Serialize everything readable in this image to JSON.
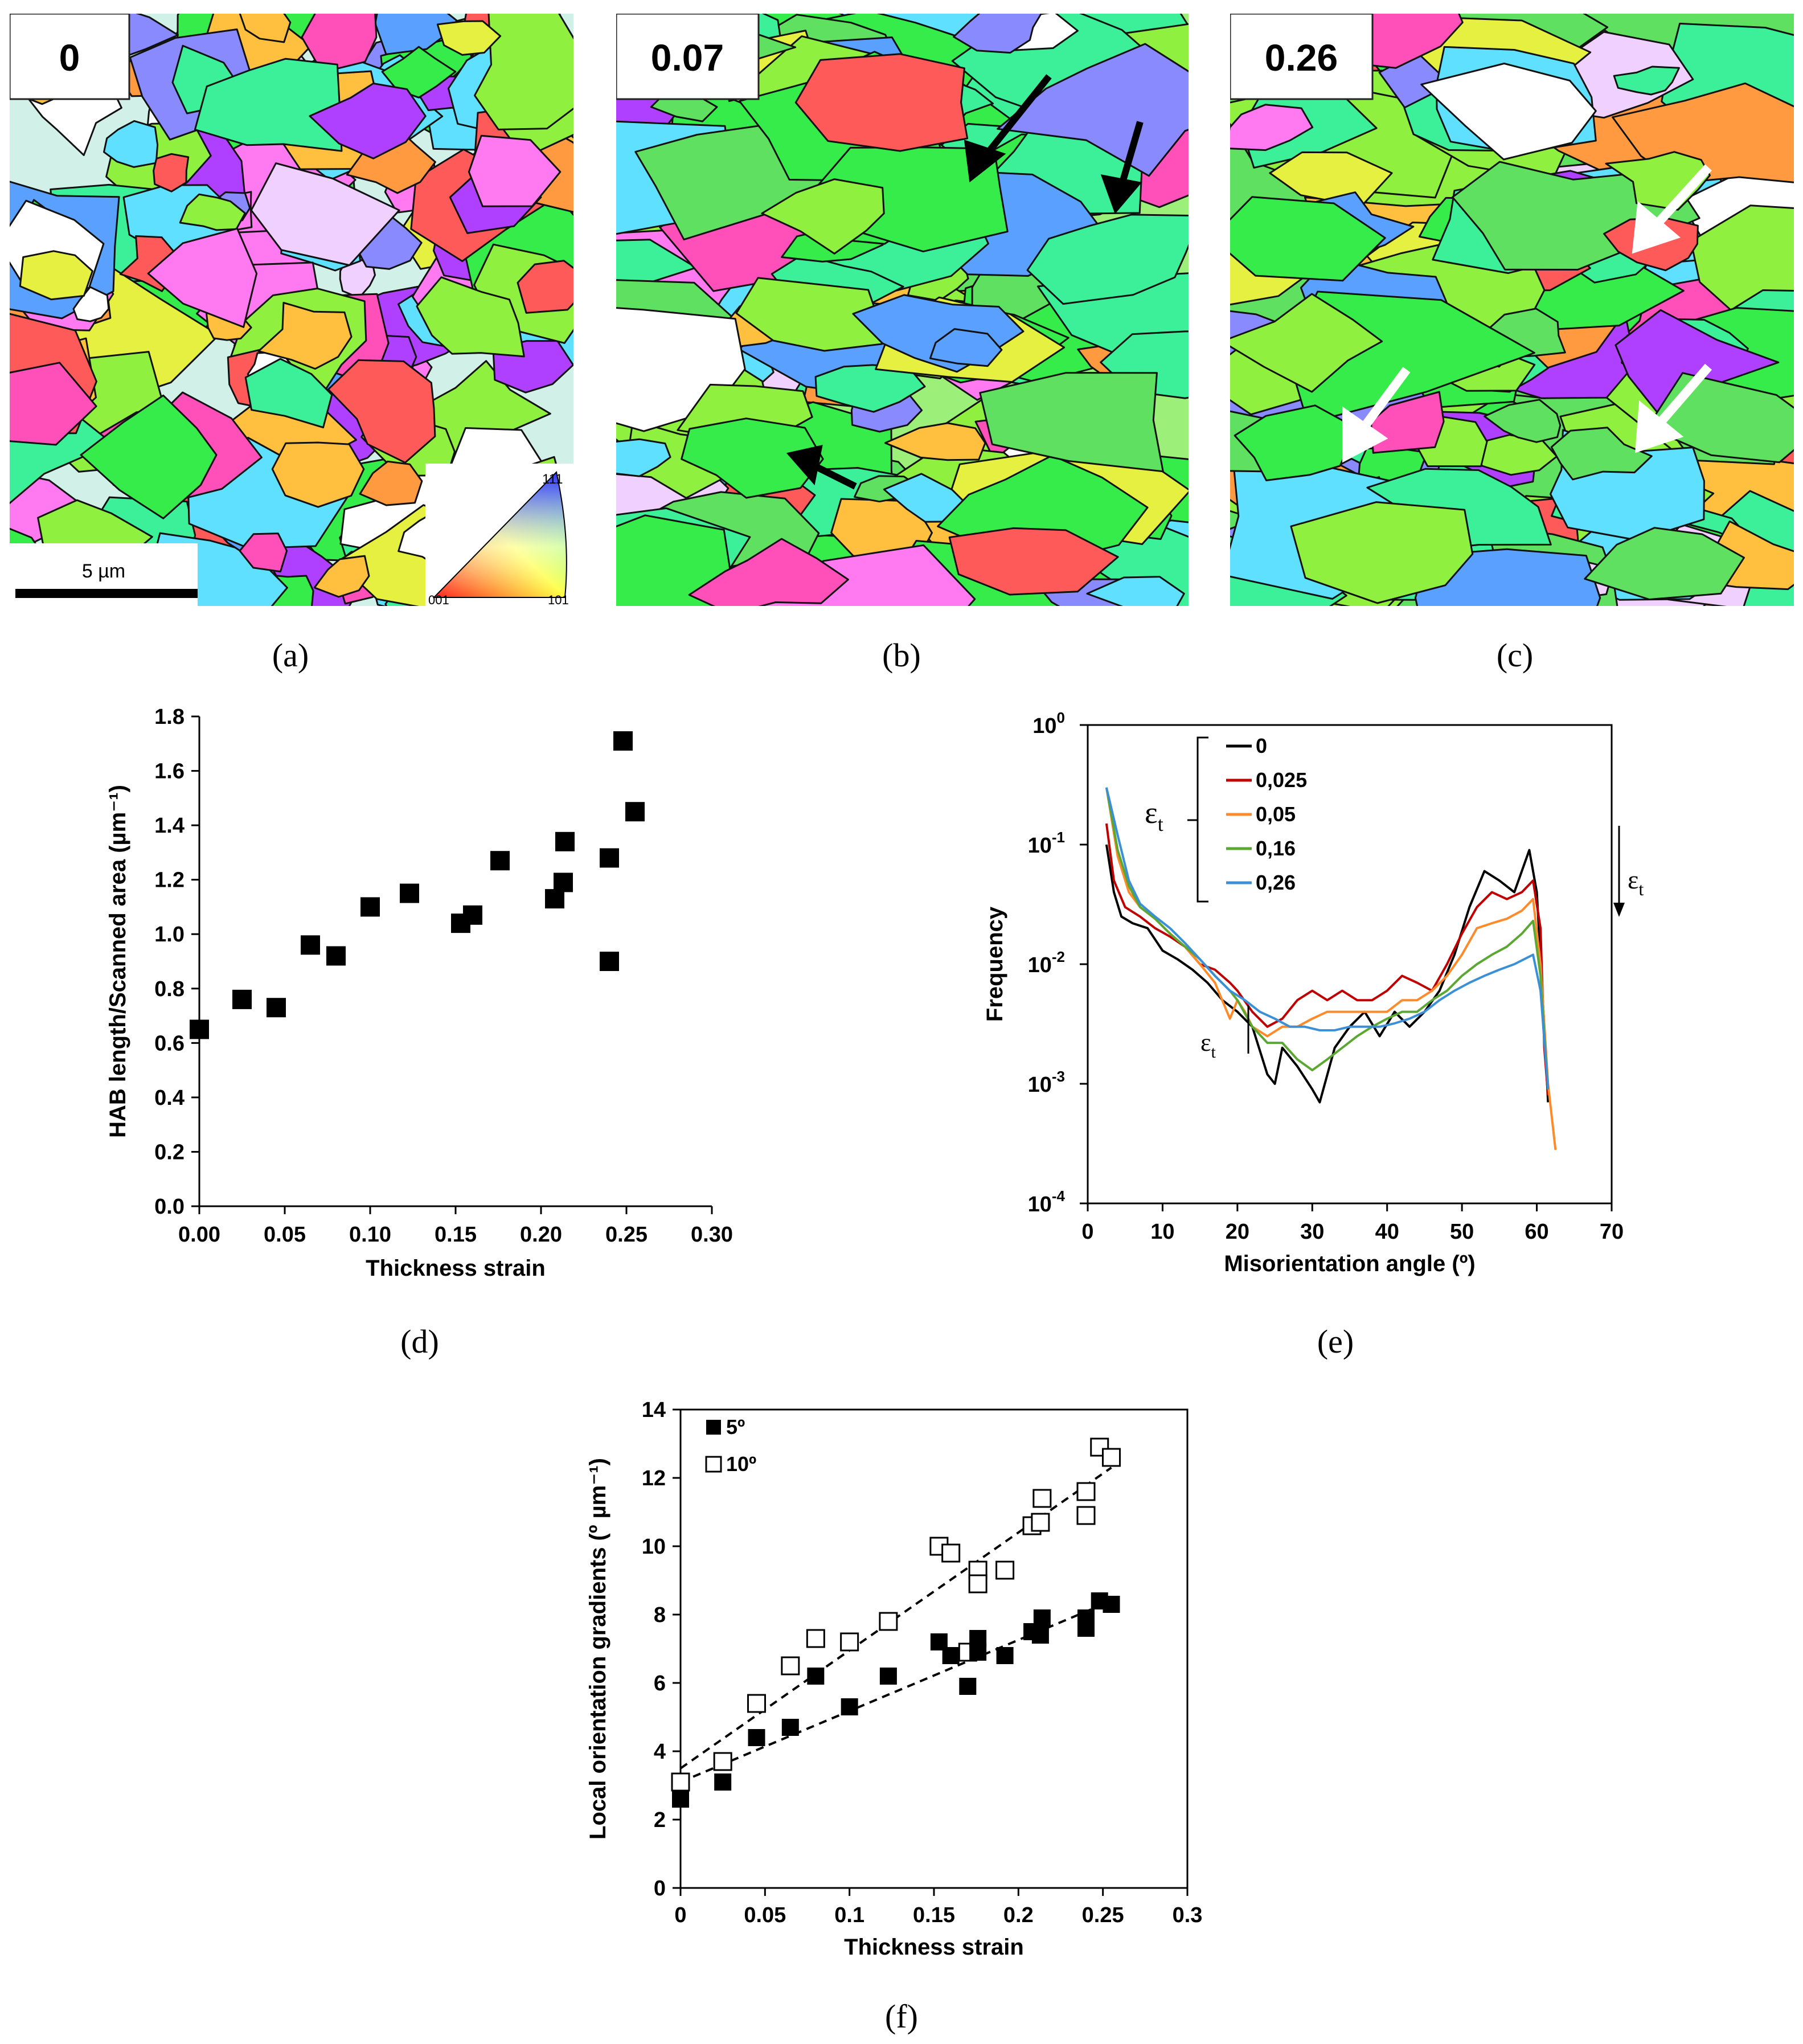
{
  "panels": {
    "a": {
      "caption": "(a)",
      "strain_label": "0",
      "scale_bar": "5 µm",
      "legend": {
        "v111": "111",
        "v001": "001",
        "v101": "101"
      }
    },
    "b": {
      "caption": "(b)",
      "strain_label": "0.07"
    },
    "c": {
      "caption": "(c)",
      "strain_label": "0.26"
    },
    "d": {
      "caption": "(d)"
    },
    "e": {
      "caption": "(e)"
    },
    "f": {
      "caption": "(f)"
    }
  },
  "colors": {
    "ebsd_palette": [
      "#ff5a5a",
      "#ff4fb8",
      "#ff7af0",
      "#b040ff",
      "#8a8aff",
      "#5aa0ff",
      "#60e0ff",
      "#3cf09a",
      "#35ec4a",
      "#90f040",
      "#e6f040",
      "#ffc040",
      "#ff9a40",
      "#f0d0ff",
      "#ffffff"
    ],
    "e_series": [
      "#000000",
      "#c00000",
      "#ff8a2a",
      "#5aa832",
      "#3a8fd6"
    ]
  },
  "chart_data": [
    {
      "id": "d",
      "type": "scatter",
      "marker": "filled-square",
      "xlabel": "Thickness strain",
      "ylabel": "HAB length/Scanned area (µm⁻¹)",
      "xlim": [
        0,
        0.3
      ],
      "ylim": [
        0,
        1.8
      ],
      "xticks": [
        "0.00",
        "0.05",
        "0.10",
        "0.15",
        "0.20",
        "0.25",
        "0.30"
      ],
      "yticks": [
        "0.0",
        "0.2",
        "0.4",
        "0.6",
        "0.8",
        "1.0",
        "1.2",
        "1.4",
        "1.6",
        "1.8"
      ],
      "points": [
        [
          0.0,
          0.65
        ],
        [
          0.025,
          0.76
        ],
        [
          0.045,
          0.73
        ],
        [
          0.065,
          0.96
        ],
        [
          0.08,
          0.92
        ],
        [
          0.1,
          1.1
        ],
        [
          0.123,
          1.15
        ],
        [
          0.153,
          1.04
        ],
        [
          0.16,
          1.07
        ],
        [
          0.176,
          1.27
        ],
        [
          0.208,
          1.13
        ],
        [
          0.213,
          1.19
        ],
        [
          0.214,
          1.34
        ],
        [
          0.24,
          1.28
        ],
        [
          0.24,
          0.9
        ],
        [
          0.248,
          1.71
        ],
        [
          0.255,
          1.45
        ]
      ]
    },
    {
      "id": "e",
      "type": "line",
      "xlabel": "Misorientation angle (º)",
      "ylabel": "Frequency",
      "xlim": [
        0,
        70
      ],
      "ylim_log10": [
        -4,
        0
      ],
      "xticks": [
        "0",
        "10",
        "20",
        "30",
        "40",
        "50",
        "60",
        "70"
      ],
      "yticks": [
        {
          "base": "10",
          "exp": "0"
        },
        {
          "base": "10",
          "exp": "-1"
        },
        {
          "base": "10",
          "exp": "-2"
        },
        {
          "base": "10",
          "exp": "-3"
        },
        {
          "base": "10",
          "exp": "-4"
        }
      ],
      "legend_title": "ε",
      "legend_title_sub": "t",
      "annotation_right": "ε",
      "annotation_right_sub": "t",
      "annotation_low": "ε",
      "annotation_low_sub": "t",
      "series": [
        {
          "name": "0",
          "points": [
            [
              2.5,
              0.1
            ],
            [
              3.5,
              0.04
            ],
            [
              4.5,
              0.025
            ],
            [
              6,
              0.022
            ],
            [
              8,
              0.02
            ],
            [
              10,
              0.013
            ],
            [
              12,
              0.011
            ],
            [
              14,
              0.009
            ],
            [
              16,
              0.007
            ],
            [
              18,
              0.005
            ],
            [
              20,
              0.004
            ],
            [
              22,
              0.003
            ],
            [
              24,
              0.0012
            ],
            [
              25,
              0.001
            ],
            [
              26,
              0.002
            ],
            [
              28,
              0.0014
            ],
            [
              30,
              0.0009
            ],
            [
              31,
              0.0007
            ],
            [
              33,
              0.002
            ],
            [
              35,
              0.003
            ],
            [
              37,
              0.004
            ],
            [
              39,
              0.0025
            ],
            [
              41,
              0.004
            ],
            [
              43,
              0.003
            ],
            [
              45,
              0.004
            ],
            [
              47,
              0.006
            ],
            [
              49,
              0.012
            ],
            [
              51,
              0.03
            ],
            [
              53,
              0.06
            ],
            [
              55,
              0.05
            ],
            [
              57,
              0.04
            ],
            [
              59,
              0.09
            ],
            [
              60,
              0.04
            ],
            [
              61,
              0.003
            ],
            [
              61.5,
              0.0007
            ]
          ]
        },
        {
          "name": "0,025",
          "points": [
            [
              2.5,
              0.15
            ],
            [
              3.5,
              0.05
            ],
            [
              5,
              0.03
            ],
            [
              7,
              0.025
            ],
            [
              9,
              0.02
            ],
            [
              11,
              0.017
            ],
            [
              13,
              0.014
            ],
            [
              15,
              0.01
            ],
            [
              17,
              0.009
            ],
            [
              19,
              0.007
            ],
            [
              20,
              0.006
            ],
            [
              22,
              0.004
            ],
            [
              24,
              0.003
            ],
            [
              26,
              0.0035
            ],
            [
              28,
              0.005
            ],
            [
              30,
              0.006
            ],
            [
              32,
              0.005
            ],
            [
              34,
              0.006
            ],
            [
              36,
              0.005
            ],
            [
              38,
              0.005
            ],
            [
              40,
              0.006
            ],
            [
              42,
              0.008
            ],
            [
              44,
              0.007
            ],
            [
              46,
              0.006
            ],
            [
              48,
              0.01
            ],
            [
              50,
              0.018
            ],
            [
              52,
              0.03
            ],
            [
              54,
              0.04
            ],
            [
              56,
              0.035
            ],
            [
              58,
              0.04
            ],
            [
              59.5,
              0.05
            ],
            [
              60.5,
              0.02
            ],
            [
              61,
              0.002
            ],
            [
              61.5,
              0.0008
            ]
          ]
        },
        {
          "name": "0,05",
          "points": [
            [
              2.5,
              0.3
            ],
            [
              4,
              0.08
            ],
            [
              5.5,
              0.04
            ],
            [
              7,
              0.03
            ],
            [
              9,
              0.024
            ],
            [
              11,
              0.018
            ],
            [
              13,
              0.014
            ],
            [
              15,
              0.01
            ],
            [
              17,
              0.007
            ],
            [
              19,
              0.0035
            ],
            [
              20,
              0.005
            ],
            [
              21,
              0.004
            ],
            [
              22,
              0.003
            ],
            [
              24,
              0.0025
            ],
            [
              26,
              0.003
            ],
            [
              28,
              0.003
            ],
            [
              30,
              0.0035
            ],
            [
              32,
              0.004
            ],
            [
              34,
              0.004
            ],
            [
              36,
              0.004
            ],
            [
              38,
              0.004
            ],
            [
              40,
              0.004
            ],
            [
              42,
              0.005
            ],
            [
              44,
              0.005
            ],
            [
              46,
              0.006
            ],
            [
              48,
              0.008
            ],
            [
              50,
              0.012
            ],
            [
              52,
              0.02
            ],
            [
              54,
              0.022
            ],
            [
              56,
              0.024
            ],
            [
              58,
              0.028
            ],
            [
              59.5,
              0.035
            ],
            [
              60.5,
              0.01
            ],
            [
              61.5,
              0.001
            ],
            [
              62.5,
              0.00028
            ]
          ]
        },
        {
          "name": "0,16",
          "points": [
            [
              2.5,
              0.3
            ],
            [
              4,
              0.09
            ],
            [
              5.5,
              0.045
            ],
            [
              7,
              0.03
            ],
            [
              9,
              0.024
            ],
            [
              11,
              0.018
            ],
            [
              13,
              0.014
            ],
            [
              15,
              0.011
            ],
            [
              17,
              0.008
            ],
            [
              19,
              0.006
            ],
            [
              20,
              0.005
            ],
            [
              22,
              0.003
            ],
            [
              24,
              0.0022
            ],
            [
              26,
              0.0022
            ],
            [
              28,
              0.0016
            ],
            [
              30,
              0.0013
            ],
            [
              32,
              0.0016
            ],
            [
              34,
              0.002
            ],
            [
              36,
              0.0025
            ],
            [
              38,
              0.003
            ],
            [
              40,
              0.0035
            ],
            [
              42,
              0.004
            ],
            [
              44,
              0.004
            ],
            [
              46,
              0.005
            ],
            [
              48,
              0.006
            ],
            [
              50,
              0.008
            ],
            [
              52,
              0.01
            ],
            [
              54,
              0.012
            ],
            [
              56,
              0.014
            ],
            [
              58,
              0.018
            ],
            [
              59.5,
              0.023
            ],
            [
              60.5,
              0.008
            ],
            [
              61.5,
              0.0009
            ]
          ]
        },
        {
          "name": "0,26",
          "points": [
            [
              2.5,
              0.3
            ],
            [
              4,
              0.12
            ],
            [
              5.5,
              0.05
            ],
            [
              7,
              0.032
            ],
            [
              9,
              0.025
            ],
            [
              11,
              0.02
            ],
            [
              13,
              0.015
            ],
            [
              15,
              0.011
            ],
            [
              17,
              0.008
            ],
            [
              19,
              0.006
            ],
            [
              21,
              0.005
            ],
            [
              23,
              0.004
            ],
            [
              25,
              0.0035
            ],
            [
              27,
              0.003
            ],
            [
              29,
              0.003
            ],
            [
              31,
              0.0028
            ],
            [
              33,
              0.0028
            ],
            [
              35,
              0.003
            ],
            [
              37,
              0.003
            ],
            [
              39,
              0.003
            ],
            [
              41,
              0.0032
            ],
            [
              43,
              0.0035
            ],
            [
              45,
              0.004
            ],
            [
              47,
              0.005
            ],
            [
              49,
              0.006
            ],
            [
              51,
              0.007
            ],
            [
              53,
              0.008
            ],
            [
              55,
              0.009
            ],
            [
              57,
              0.01
            ],
            [
              59.5,
              0.012
            ],
            [
              60.5,
              0.006
            ],
            [
              61.5,
              0.0009
            ]
          ]
        }
      ]
    },
    {
      "id": "f",
      "type": "scatter",
      "xlabel": "Thickness strain",
      "ylabel": "Local orientation gradients (º µm⁻¹)",
      "xlim": [
        0,
        0.3
      ],
      "ylim": [
        0,
        14
      ],
      "xticks": [
        "0",
        "0.05",
        "0.1",
        "0.15",
        "0.2",
        "0.25",
        "0.3"
      ],
      "yticks": [
        "0",
        "2",
        "4",
        "6",
        "8",
        "10",
        "12",
        "14"
      ],
      "series": [
        {
          "name": "5º",
          "marker": "filled-square",
          "points": [
            [
              0,
              2.6
            ],
            [
              0.025,
              3.1
            ],
            [
              0.045,
              4.4
            ],
            [
              0.065,
              4.7
            ],
            [
              0.08,
              6.2
            ],
            [
              0.1,
              5.3
            ],
            [
              0.123,
              6.2
            ],
            [
              0.153,
              7.2
            ],
            [
              0.16,
              6.8
            ],
            [
              0.17,
              5.9
            ],
            [
              0.176,
              7.3
            ],
            [
              0.176,
              6.9
            ],
            [
              0.192,
              6.8
            ],
            [
              0.208,
              7.5
            ],
            [
              0.213,
              7.4
            ],
            [
              0.214,
              7.9
            ],
            [
              0.24,
              7.6
            ],
            [
              0.24,
              7.9
            ],
            [
              0.248,
              8.4
            ],
            [
              0.255,
              8.3
            ]
          ],
          "trend": [
            [
              0,
              3.1
            ],
            [
              0.255,
              8.4
            ]
          ]
        },
        {
          "name": "10º",
          "marker": "open-square",
          "points": [
            [
              0,
              3.1
            ],
            [
              0.025,
              3.7
            ],
            [
              0.045,
              5.4
            ],
            [
              0.065,
              6.5
            ],
            [
              0.08,
              7.3
            ],
            [
              0.1,
              7.2
            ],
            [
              0.123,
              7.8
            ],
            [
              0.153,
              10.0
            ],
            [
              0.16,
              9.8
            ],
            [
              0.17,
              6.9
            ],
            [
              0.176,
              9.3
            ],
            [
              0.176,
              8.9
            ],
            [
              0.192,
              9.3
            ],
            [
              0.208,
              10.6
            ],
            [
              0.213,
              10.7
            ],
            [
              0.214,
              11.4
            ],
            [
              0.24,
              11.6
            ],
            [
              0.24,
              10.9
            ],
            [
              0.248,
              12.9
            ],
            [
              0.255,
              12.6
            ]
          ],
          "trend": [
            [
              0,
              3.5
            ],
            [
              0.255,
              12.3
            ]
          ]
        }
      ]
    }
  ]
}
